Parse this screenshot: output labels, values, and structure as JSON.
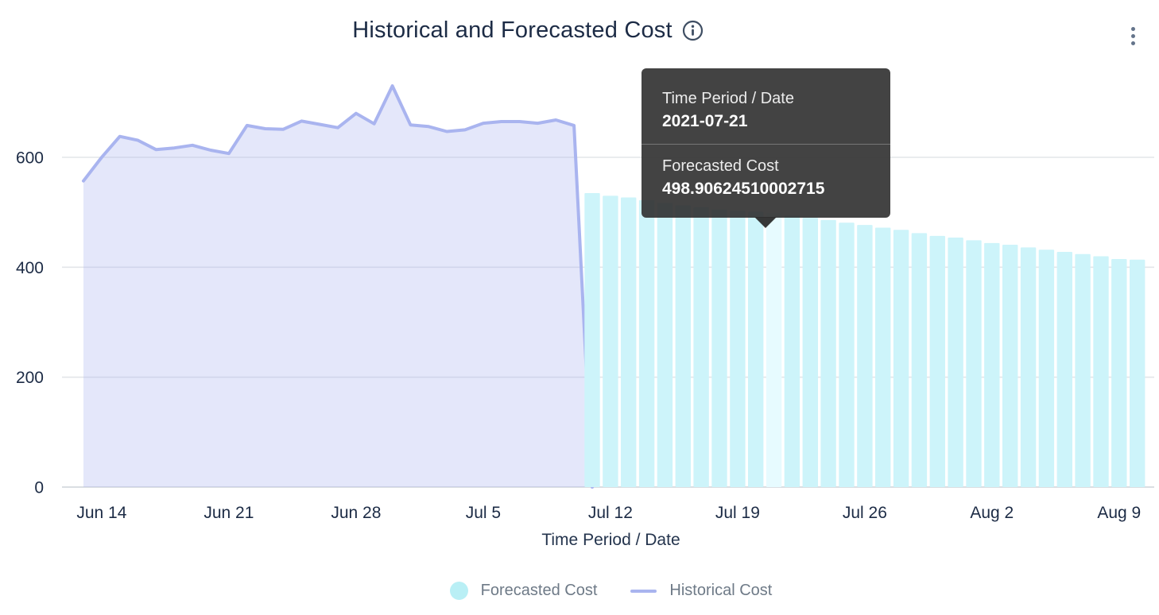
{
  "header": {
    "title": "Historical and Forecasted Cost"
  },
  "tooltip": {
    "rows": [
      {
        "label": "Time Period / Date",
        "value": "2021-07-21"
      },
      {
        "label": "Forecasted Cost",
        "value": "498.90624510002715"
      }
    ]
  },
  "xaxis_title": "Time Period / Date",
  "legend": [
    {
      "label": "Forecasted Cost",
      "swatch": "circle",
      "color": "#b9eff5"
    },
    {
      "label": "Historical Cost",
      "swatch": "line",
      "color": "#a9b4ef"
    }
  ],
  "chart_data": {
    "type": "mixed",
    "title": "Historical and Forecasted Cost",
    "xlabel": "Time Period / Date",
    "ylabel": "",
    "ylim": [
      0,
      740
    ],
    "y_ticks": [
      "0",
      "200",
      "400",
      "600"
    ],
    "x_ticks": [
      "Jun 14",
      "Jun 21",
      "Jun 28",
      "Jul 5",
      "Jul 12",
      "Jul 19",
      "Jul 26",
      "Aug 2",
      "Aug 9"
    ],
    "grid": "horizontal",
    "legend_position": "bottom",
    "series": [
      {
        "name": "Historical Cost",
        "type": "area-line",
        "line_color": "#a9b4ef",
        "fill_color": "#aab4ee",
        "fill_opacity": 0.32,
        "dates": [
          "2021-06-13",
          "2021-06-14",
          "2021-06-15",
          "2021-06-16",
          "2021-06-17",
          "2021-06-18",
          "2021-06-19",
          "2021-06-20",
          "2021-06-21",
          "2021-06-22",
          "2021-06-23",
          "2021-06-24",
          "2021-06-25",
          "2021-06-26",
          "2021-06-27",
          "2021-06-28",
          "2021-06-29",
          "2021-06-30",
          "2021-07-01",
          "2021-07-02",
          "2021-07-03",
          "2021-07-04",
          "2021-07-05",
          "2021-07-06",
          "2021-07-07",
          "2021-07-08",
          "2021-07-09",
          "2021-07-10",
          "2021-07-11"
        ],
        "values": [
          557,
          600,
          638,
          631,
          614,
          617,
          622,
          613,
          607,
          658,
          652,
          651,
          666,
          660,
          654,
          680,
          661,
          730,
          659,
          656,
          647,
          650,
          662,
          665,
          665,
          662,
          668,
          658,
          0
        ]
      },
      {
        "name": "Forecasted Cost",
        "type": "bar",
        "bar_color": "#cdf4fa",
        "highlight_color": "#e7fbff",
        "highlight_date": "2021-07-21",
        "dates": [
          "2021-07-11",
          "2021-07-12",
          "2021-07-13",
          "2021-07-14",
          "2021-07-15",
          "2021-07-16",
          "2021-07-17",
          "2021-07-18",
          "2021-07-19",
          "2021-07-20",
          "2021-07-21",
          "2021-07-22",
          "2021-07-23",
          "2021-07-24",
          "2021-07-25",
          "2021-07-26",
          "2021-07-27",
          "2021-07-28",
          "2021-07-29",
          "2021-07-30",
          "2021-07-31",
          "2021-08-01",
          "2021-08-02",
          "2021-08-03",
          "2021-08-04",
          "2021-08-05",
          "2021-08-06",
          "2021-08-07",
          "2021-08-08",
          "2021-08-09",
          "2021-08-10"
        ],
        "values": [
          535,
          530,
          527,
          522,
          517,
          513,
          509,
          505,
          503,
          501,
          498.90624510002715,
          494,
          490,
          486,
          481,
          477,
          472,
          468,
          462,
          457,
          454,
          449,
          444,
          441,
          436,
          432,
          428,
          424,
          420,
          415,
          414
        ]
      }
    ]
  }
}
